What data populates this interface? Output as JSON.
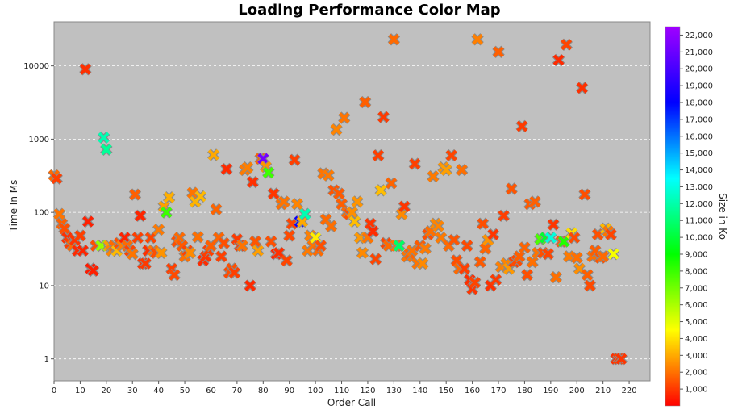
{
  "chart_data": {
    "type": "scatter",
    "title": "Loading Performance Color Map",
    "xlabel": "Order Call",
    "ylabel": "Time In Ms",
    "colorbar_label": "Size in Ko",
    "xlim": [
      0,
      228
    ],
    "ylim": [
      0.5,
      40000
    ],
    "yscale": "log",
    "grid": true,
    "x_ticks": [
      0,
      10,
      20,
      30,
      40,
      50,
      60,
      70,
      80,
      90,
      100,
      110,
      120,
      130,
      140,
      150,
      160,
      170,
      180,
      190,
      200,
      210,
      220
    ],
    "y_ticks": [
      1,
      10,
      100,
      1000,
      10000
    ],
    "y_tick_labels": [
      "1",
      "10",
      "100",
      "1000",
      "10000"
    ],
    "colorbar_ticks": [
      1000,
      2000,
      3000,
      4000,
      5000,
      6000,
      7000,
      8000,
      9000,
      10000,
      11000,
      12000,
      13000,
      14000,
      15000,
      16000,
      17000,
      18000,
      19000,
      20000,
      21000,
      22000
    ],
    "colorbar_tick_labels": [
      "1,000",
      "2,000",
      "3,000",
      "4,000",
      "5,000",
      "6,000",
      "7,000",
      "8,000",
      "9,000",
      "10,000",
      "11,000",
      "12,000",
      "13,000",
      "14,000",
      "15,000",
      "16,000",
      "17,000",
      "18,000",
      "19,000",
      "20,000",
      "21,000",
      "22,000"
    ],
    "colorbar_range": [
      0,
      22500
    ],
    "points": [
      [
        0,
        320,
        2000
      ],
      [
        1,
        290,
        1200
      ],
      [
        2,
        95,
        2200
      ],
      [
        3,
        70,
        1800
      ],
      [
        4,
        60,
        1500
      ],
      [
        5,
        45,
        900
      ],
      [
        6,
        38,
        1200
      ],
      [
        7,
        35,
        2000
      ],
      [
        8,
        42,
        1000
      ],
      [
        9,
        30,
        800
      ],
      [
        10,
        48,
        1200
      ],
      [
        11,
        30,
        700
      ],
      [
        12,
        9000,
        900
      ],
      [
        13,
        75,
        600
      ],
      [
        14,
        17,
        500
      ],
      [
        15,
        16,
        600
      ],
      [
        16,
        35,
        1500
      ],
      [
        18,
        35,
        6800
      ],
      [
        19,
        1050,
        13000
      ],
      [
        20,
        720,
        12500
      ],
      [
        21,
        35,
        3000
      ],
      [
        22,
        30,
        2500
      ],
      [
        23,
        35,
        2000
      ],
      [
        24,
        30,
        3500
      ],
      [
        25,
        38,
        1500
      ],
      [
        26,
        35,
        2400
      ],
      [
        27,
        45,
        600
      ],
      [
        28,
        35,
        2000
      ],
      [
        29,
        30,
        1300
      ],
      [
        30,
        27,
        2200
      ],
      [
        31,
        175,
        1800
      ],
      [
        32,
        45,
        1200
      ],
      [
        33,
        90,
        700
      ],
      [
        34,
        20,
        1000
      ],
      [
        35,
        20,
        1100
      ],
      [
        36,
        30,
        900
      ],
      [
        37,
        45,
        1300
      ],
      [
        38,
        30,
        2200
      ],
      [
        39,
        28,
        1500
      ],
      [
        40,
        58,
        2300
      ],
      [
        41,
        28,
        2800
      ],
      [
        42,
        120,
        3000
      ],
      [
        43,
        100,
        8500
      ],
      [
        44,
        160,
        3300
      ],
      [
        45,
        17,
        1200
      ],
      [
        46,
        14,
        1400
      ],
      [
        47,
        40,
        1500
      ],
      [
        48,
        45,
        2000
      ],
      [
        49,
        35,
        1700
      ],
      [
        50,
        25,
        2100
      ],
      [
        51,
        30,
        1300
      ],
      [
        52,
        28,
        2600
      ],
      [
        53,
        185,
        2200
      ],
      [
        54,
        140,
        3400
      ],
      [
        55,
        46,
        2100
      ],
      [
        56,
        165,
        3500
      ],
      [
        57,
        22,
        800
      ],
      [
        58,
        25,
        1000
      ],
      [
        59,
        30,
        1200
      ],
      [
        60,
        35,
        1800
      ],
      [
        61,
        610,
        3200
      ],
      [
        62,
        110,
        1900
      ],
      [
        63,
        45,
        1900
      ],
      [
        64,
        25,
        1200
      ],
      [
        65,
        38,
        1500
      ],
      [
        66,
        390,
        800
      ],
      [
        67,
        15,
        1400
      ],
      [
        68,
        17,
        1500
      ],
      [
        69,
        15,
        1200
      ],
      [
        70,
        43,
        1100
      ],
      [
        71,
        35,
        1200
      ],
      [
        72,
        35,
        2200
      ],
      [
        73,
        380,
        2300
      ],
      [
        74,
        410,
        2400
      ],
      [
        75,
        10,
        800
      ],
      [
        76,
        260,
        900
      ],
      [
        77,
        40,
        1600
      ],
      [
        78,
        30,
        3000
      ],
      [
        79,
        540,
        1800
      ],
      [
        80,
        540,
        21500
      ],
      [
        81,
        420,
        2800
      ],
      [
        82,
        350,
        8500
      ],
      [
        83,
        40,
        1500
      ],
      [
        84,
        180,
        1000
      ],
      [
        85,
        27,
        700
      ],
      [
        86,
        28,
        900
      ],
      [
        87,
        130,
        2100
      ],
      [
        88,
        140,
        2200
      ],
      [
        89,
        22,
        1300
      ],
      [
        90,
        48,
        1400
      ],
      [
        91,
        70,
        1300
      ],
      [
        92,
        520,
        1200
      ],
      [
        93,
        130,
        2500
      ],
      [
        94,
        75,
        19500
      ],
      [
        95,
        75,
        3200
      ],
      [
        96,
        95,
        13000
      ],
      [
        97,
        30,
        2300
      ],
      [
        98,
        48,
        2400
      ],
      [
        99,
        35,
        2200
      ],
      [
        100,
        45,
        4500
      ],
      [
        101,
        30,
        2000
      ],
      [
        102,
        35,
        1500
      ],
      [
        103,
        340,
        2200
      ],
      [
        104,
        80,
        2000
      ],
      [
        105,
        320,
        2300
      ],
      [
        106,
        65,
        2100
      ],
      [
        107,
        200,
        1600
      ],
      [
        108,
        1350,
        2500
      ],
      [
        109,
        180,
        1700
      ],
      [
        110,
        130,
        1800
      ],
      [
        111,
        1950,
        2200
      ],
      [
        112,
        100,
        2000
      ],
      [
        113,
        95,
        1500
      ],
      [
        114,
        100,
        2700
      ],
      [
        115,
        75,
        3600
      ],
      [
        116,
        140,
        2800
      ],
      [
        117,
        45,
        2900
      ],
      [
        118,
        28,
        2600
      ],
      [
        119,
        3200,
        1800
      ],
      [
        120,
        45,
        2200
      ],
      [
        121,
        70,
        1000
      ],
      [
        122,
        55,
        800
      ],
      [
        123,
        23,
        1300
      ],
      [
        124,
        600,
        1200
      ],
      [
        125,
        200,
        3600
      ],
      [
        126,
        2000,
        1100
      ],
      [
        127,
        38,
        1300
      ],
      [
        128,
        35,
        2000
      ],
      [
        129,
        250,
        1900
      ],
      [
        130,
        23000,
        2000
      ],
      [
        131,
        35,
        2200
      ],
      [
        132,
        35,
        11500
      ],
      [
        133,
        95,
        2600
      ],
      [
        134,
        120,
        1000
      ],
      [
        135,
        25,
        2200
      ],
      [
        136,
        27,
        1900
      ],
      [
        137,
        30,
        2200
      ],
      [
        138,
        460,
        1200
      ],
      [
        139,
        20,
        2200
      ],
      [
        140,
        35,
        1700
      ],
      [
        141,
        20,
        2600
      ],
      [
        142,
        32,
        2300
      ],
      [
        143,
        50,
        1500
      ],
      [
        144,
        55,
        2100
      ],
      [
        145,
        310,
        2300
      ],
      [
        146,
        70,
        2600
      ],
      [
        147,
        65,
        2500
      ],
      [
        148,
        45,
        2300
      ],
      [
        149,
        410,
        2800
      ],
      [
        150,
        380,
        3000
      ],
      [
        151,
        35,
        2000
      ],
      [
        152,
        600,
        1300
      ],
      [
        153,
        42,
        1600
      ],
      [
        154,
        22,
        1500
      ],
      [
        155,
        17,
        2000
      ],
      [
        156,
        380,
        2100
      ],
      [
        157,
        17,
        1200
      ],
      [
        158,
        35,
        1400
      ],
      [
        159,
        12,
        900
      ],
      [
        160,
        9,
        1000
      ],
      [
        161,
        11,
        1300
      ],
      [
        162,
        23000,
        2400
      ],
      [
        163,
        21,
        1700
      ],
      [
        164,
        70,
        1500
      ],
      [
        165,
        32,
        1900
      ],
      [
        166,
        42,
        2800
      ],
      [
        167,
        10,
        900
      ],
      [
        168,
        50,
        1000
      ],
      [
        169,
        12,
        1100
      ],
      [
        170,
        15500,
        1800
      ],
      [
        171,
        18,
        2400
      ],
      [
        172,
        90,
        1200
      ],
      [
        173,
        20,
        2500
      ],
      [
        174,
        17,
        2900
      ],
      [
        175,
        210,
        1600
      ],
      [
        176,
        21,
        1200
      ],
      [
        177,
        22,
        1400
      ],
      [
        178,
        25,
        1800
      ],
      [
        179,
        1500,
        1100
      ],
      [
        180,
        33,
        1900
      ],
      [
        181,
        14,
        1500
      ],
      [
        182,
        130,
        1700
      ],
      [
        183,
        21,
        2100
      ],
      [
        184,
        140,
        1800
      ],
      [
        185,
        28,
        2200
      ],
      [
        186,
        43,
        8200
      ],
      [
        187,
        28,
        1500
      ],
      [
        188,
        45,
        10500
      ],
      [
        189,
        27,
        1300
      ],
      [
        190,
        45,
        13800
      ],
      [
        191,
        68,
        1000
      ],
      [
        192,
        13,
        2100
      ],
      [
        193,
        12000,
        800
      ],
      [
        194,
        40,
        1800
      ],
      [
        195,
        40,
        9000
      ],
      [
        196,
        19500,
        1300
      ],
      [
        197,
        25,
        2300
      ],
      [
        198,
        52,
        4200
      ],
      [
        199,
        45,
        1400
      ],
      [
        200,
        24,
        2100
      ],
      [
        201,
        17,
        2700
      ],
      [
        202,
        5000,
        900
      ],
      [
        203,
        175,
        1500
      ],
      [
        204,
        14,
        1800
      ],
      [
        205,
        10,
        1400
      ],
      [
        206,
        25,
        2100
      ],
      [
        207,
        30,
        1800
      ],
      [
        208,
        50,
        1500
      ],
      [
        209,
        24,
        1600
      ],
      [
        210,
        25,
        2000
      ],
      [
        211,
        60,
        3500
      ],
      [
        212,
        55,
        2200
      ],
      [
        213,
        50,
        1300
      ],
      [
        214,
        27,
        5000
      ],
      [
        215,
        1,
        900
      ],
      [
        216,
        1,
        1200
      ],
      [
        217,
        1,
        1000
      ]
    ]
  }
}
